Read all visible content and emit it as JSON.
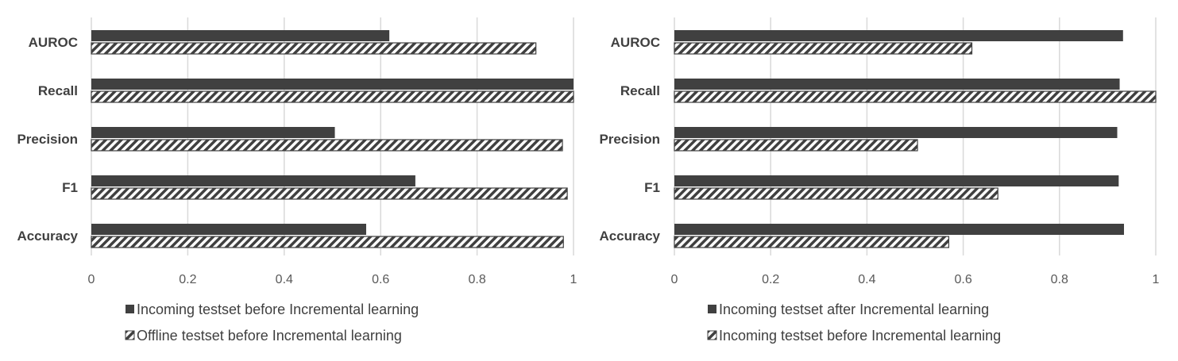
{
  "colors": {
    "solid": "#404040",
    "hatch": "#404040",
    "grid": "#d9d9d9",
    "label": "#404040",
    "tick": "#595959"
  },
  "chart_data": [
    {
      "type": "bar",
      "orientation": "horizontal",
      "categories": [
        "AUROC",
        "Recall",
        "Precision",
        "F1",
        "Accuracy"
      ],
      "xlim": [
        0,
        1
      ],
      "xticks": [
        "0",
        "0.2",
        "0.4",
        "0.6",
        "0.8",
        "1"
      ],
      "grid": true,
      "legend_position": "bottom",
      "series": [
        {
          "name": "Incoming testset before Incremental learning",
          "fill": "solid",
          "values": [
            0.618,
            1.0,
            0.505,
            0.672,
            0.57
          ]
        },
        {
          "name": "Offline testset before Incremental learning",
          "fill": "hatched",
          "values": [
            0.922,
            1.0,
            0.977,
            0.987,
            0.979
          ]
        }
      ]
    },
    {
      "type": "bar",
      "orientation": "horizontal",
      "categories": [
        "AUROC",
        "Recall",
        "Precision",
        "F1",
        "Accuracy"
      ],
      "xlim": [
        0,
        1
      ],
      "xticks": [
        "0",
        "0.2",
        "0.4",
        "0.6",
        "0.8",
        "1"
      ],
      "grid": true,
      "legend_position": "bottom",
      "series": [
        {
          "name": "Incoming testset after Incremental learning",
          "fill": "solid",
          "values": [
            0.932,
            0.925,
            0.92,
            0.923,
            0.934
          ]
        },
        {
          "name": "Incoming testset before Incremental learning",
          "fill": "hatched",
          "values": [
            0.618,
            1.0,
            0.505,
            0.672,
            0.57
          ]
        }
      ]
    }
  ]
}
